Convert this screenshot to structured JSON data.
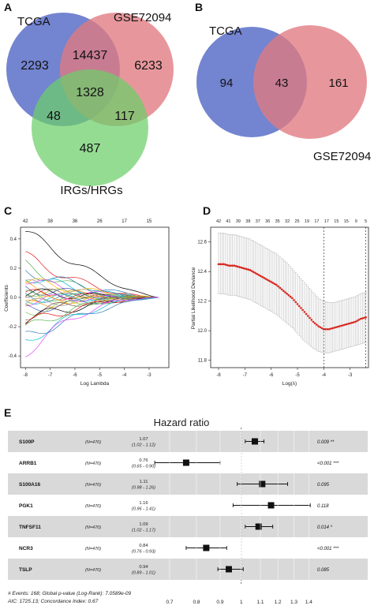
{
  "panel_labels": {
    "a": "A",
    "b": "B",
    "c": "C",
    "d": "D",
    "e": "E"
  },
  "colors": {
    "tcga": "#5a6fc8",
    "gse": "#e07a80",
    "irg": "#6ccf6a",
    "dot": "#d7261e",
    "forest_band": "#d9d9d9"
  },
  "venn_a": {
    "labels": {
      "tcga": "TCGA",
      "gse": "GSE72094",
      "irg": "IRGs/HRGs"
    },
    "counts": {
      "tcga_only": "2293",
      "tcga_gse": "14437",
      "gse_only": "6233",
      "all": "1328",
      "tcga_irg": "48",
      "gse_irg": "117",
      "irg_only": "487"
    }
  },
  "venn_b": {
    "labels": {
      "tcga": "TCGA",
      "gse": "GSE72094"
    },
    "counts": {
      "tcga_only": "94",
      "both": "43",
      "gse_only": "161"
    }
  },
  "lasso_path": {
    "top_ticks": [
      "42",
      "38",
      "36",
      "26",
      "17",
      "15"
    ],
    "y_ticks": [
      "0.4",
      "0.2",
      "0.0",
      "-0.2",
      "-0.4"
    ],
    "x_ticks": [
      "-8",
      "-7",
      "-6",
      "-5",
      "-4",
      "-3"
    ],
    "xlabel": "Log Lambda",
    "ylabel": "Coefficients"
  },
  "chart_data": [
    {
      "type": "line",
      "title": "",
      "xlabel": "Log(λ)",
      "ylabel": "Partial Likelihood Deviance",
      "top_ticks": [
        "42",
        "41",
        "39",
        "38",
        "37",
        "36",
        "35",
        "32",
        "25",
        "19",
        "17",
        "17",
        "15",
        "15",
        "9",
        "5"
      ],
      "x_ticks": [
        "-8",
        "-7",
        "-6",
        "-5",
        "-4",
        "-3"
      ],
      "y_ticks": [
        "12.6",
        "12.4",
        "12.2",
        "12.0",
        "11.8"
      ],
      "xlim": [
        -8.3,
        -2.3
      ],
      "ylim": [
        11.75,
        12.7
      ],
      "vlines": [
        -4.0,
        -2.4
      ],
      "series": [
        {
          "x": [
            -8.0,
            -7.8,
            -7.6,
            -7.4,
            -7.2,
            -7.0,
            -6.8,
            -6.6,
            -6.4,
            -6.2,
            -6.0,
            -5.8,
            -5.6,
            -5.4,
            -5.2,
            -5.0,
            -4.8,
            -4.6,
            -4.4,
            -4.2,
            -4.0,
            -3.8,
            -3.6,
            -3.4,
            -3.2,
            -3.0,
            -2.8,
            -2.6,
            -2.4
          ],
          "y": [
            12.45,
            12.45,
            12.44,
            12.44,
            12.43,
            12.42,
            12.41,
            12.39,
            12.37,
            12.35,
            12.33,
            12.31,
            12.28,
            12.25,
            12.22,
            12.18,
            12.14,
            12.1,
            12.06,
            12.03,
            12.01,
            12.01,
            12.02,
            12.03,
            12.04,
            12.05,
            12.06,
            12.08,
            12.09
          ]
        }
      ],
      "error_low": [
        12.25,
        12.25,
        12.24,
        12.24,
        12.23,
        12.22,
        12.21,
        12.19,
        12.17,
        12.15,
        12.13,
        12.11,
        12.08,
        12.05,
        12.02,
        11.98,
        11.94,
        11.91,
        11.88,
        11.86,
        11.85,
        11.85,
        11.86,
        11.87,
        11.88,
        11.89,
        11.9,
        11.91,
        11.92
      ],
      "error_high": [
        12.66,
        12.66,
        12.65,
        12.65,
        12.64,
        12.63,
        12.62,
        12.6,
        12.58,
        12.56,
        12.54,
        12.52,
        12.49,
        12.46,
        12.42,
        12.38,
        12.34,
        12.3,
        12.26,
        12.22,
        12.2,
        12.19,
        12.19,
        12.2,
        12.21,
        12.22,
        12.23,
        12.25,
        12.26
      ]
    },
    {
      "type": "forest",
      "title": "Hazard ratio",
      "rows": [
        {
          "gene": "S100P",
          "n": "(N=470)",
          "hr": 1.07,
          "lo": 1.02,
          "hi": 1.12,
          "hr_text": "1.07",
          "ci_text": "(1.02 - 1.12)",
          "p_text": "0.009 **"
        },
        {
          "gene": "ARRB1",
          "n": "(N=470)",
          "hr": 0.76,
          "lo": 0.65,
          "hi": 0.9,
          "hr_text": "0.76",
          "ci_text": "(0.65 - 0.90)",
          "p_text": "<0.001 ***"
        },
        {
          "gene": "S100A16",
          "n": "(N=470)",
          "hr": 1.11,
          "lo": 0.98,
          "hi": 1.26,
          "hr_text": "1.11",
          "ci_text": "(0.98 - 1.26)",
          "p_text": "0.095"
        },
        {
          "gene": "PGK1",
          "n": "(N=470)",
          "hr": 1.16,
          "lo": 0.96,
          "hi": 1.41,
          "hr_text": "1.16",
          "ci_text": "(0.96 - 1.41)",
          "p_text": "0.118"
        },
        {
          "gene": "TNFSF11",
          "n": "(N=470)",
          "hr": 1.09,
          "lo": 1.02,
          "hi": 1.17,
          "hr_text": "1.09",
          "ci_text": "(1.02 - 1.17)",
          "p_text": "0.014 *"
        },
        {
          "gene": "NCR3",
          "n": "(N=470)",
          "hr": 0.84,
          "lo": 0.76,
          "hi": 0.93,
          "hr_text": "0.84",
          "ci_text": "(0.76 - 0.93)",
          "p_text": "<0.001 ***"
        },
        {
          "gene": "TSLP",
          "n": "(N=470)",
          "hr": 0.94,
          "lo": 0.89,
          "hi": 1.01,
          "hr_text": "0.94",
          "ci_text": "(0.89 - 1.01)",
          "p_text": "0.085"
        }
      ],
      "x_ticks": [
        "0.7",
        "0.8",
        "0.9",
        "1",
        "1.1",
        "1.2",
        "1.3",
        "1.4"
      ],
      "xlim_log": [
        0.7,
        1.4
      ],
      "footer": [
        "# Events: 168; Global p-value (Log-Rank): 7.0589e-09",
        "AIC: 1725.13; Concordance Index: 0.67"
      ]
    }
  ]
}
